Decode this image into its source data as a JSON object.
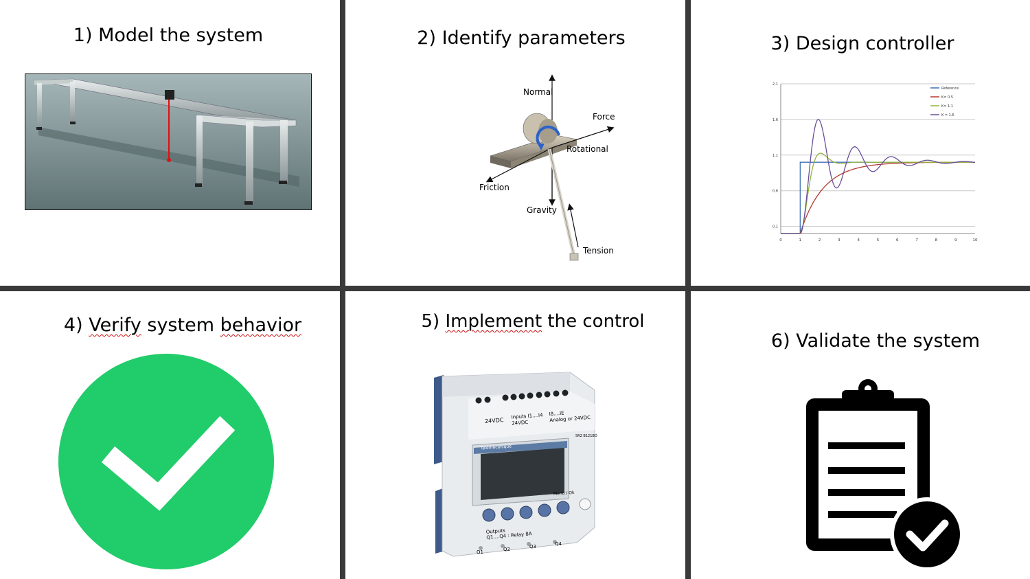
{
  "panels": [
    {
      "title": "1) Model the system"
    },
    {
      "title": "2) Identify parameters",
      "labels": {
        "normal": "Normal",
        "force": "Force",
        "rotational": "Rotational",
        "friction": "Friction",
        "gravity": "Gravity",
        "tension": "Tension"
      }
    },
    {
      "title": "3) Design controller"
    },
    {
      "title_prefix": "4) ",
      "title_w1": "Verify",
      "title_mid": " system ",
      "title_w2": "behavior",
      "icon": "check-circle-icon",
      "icon_color": "#21cc6a"
    },
    {
      "title_prefix": "5) ",
      "title_w1": "Implement",
      "title_rest": " the control",
      "plc": {
        "power_label": "24VDC",
        "inputs_label": "Inputs I1....I4",
        "inputs_sub": "24VDC",
        "analog_label": "I8....IE",
        "analog_sub": "Analog or 24VDC",
        "model": "SR2 B121BD",
        "brand": "Telemecanique",
        "menu": "Menu / Ok",
        "outputs_label": "Outputs",
        "outputs_sub": "Q1....Q4 : Relay 8A",
        "outputs": [
          "Q1",
          "Q2",
          "Q3",
          "Q4"
        ]
      }
    },
    {
      "title": "6) Validate the system",
      "icon": "clipboard-check-icon"
    }
  ],
  "chart_data": {
    "type": "line",
    "title": "",
    "xlabel": "",
    "ylabel": "",
    "xlim": [
      0,
      10
    ],
    "ylim": [
      0,
      2.1
    ],
    "x_ticks": [
      "0",
      "1",
      "2",
      "3",
      "4",
      "5",
      "6",
      "7",
      "8",
      "9",
      "10"
    ],
    "y_ticks": [
      "0.1",
      "0.6",
      "1.1",
      "1.6",
      "2.1"
    ],
    "legend_position": "top-right",
    "series": [
      {
        "name": "Reference",
        "color": "#3c6fb5",
        "kind": "step",
        "step_at": 1,
        "low": 0,
        "high": 1.0
      },
      {
        "name": "K= 0.5",
        "color": "#b13a30",
        "kind": "response",
        "K": 0.5
      },
      {
        "name": "K= 1.1",
        "color": "#95b53d",
        "kind": "response",
        "K": 1.1
      },
      {
        "name": "K = 1.6",
        "color": "#6a4f99",
        "kind": "response",
        "K": 1.6
      }
    ]
  }
}
